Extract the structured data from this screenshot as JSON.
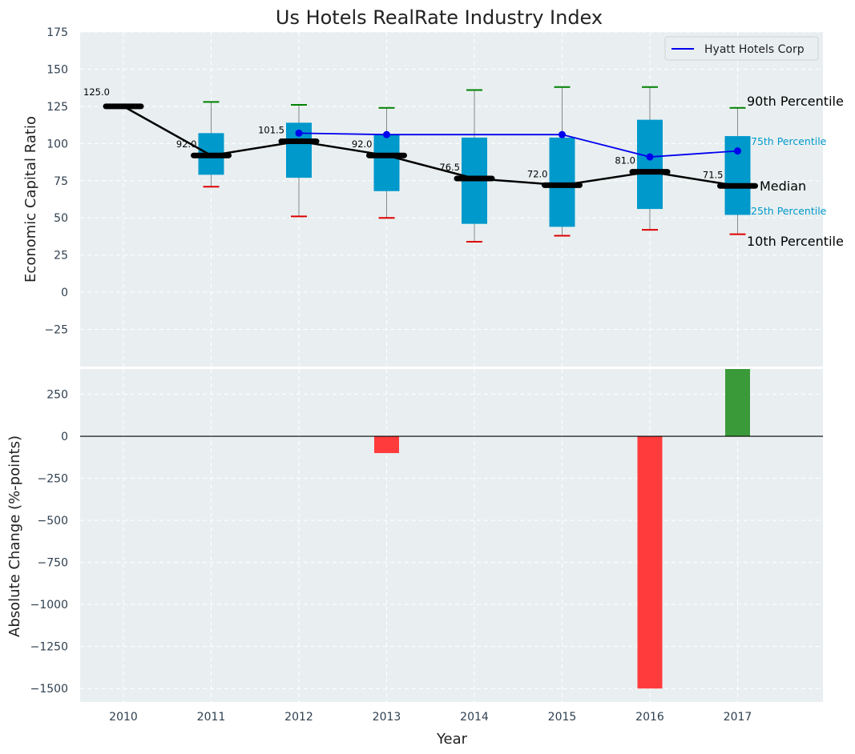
{
  "chart_data": [
    {
      "type": "box",
      "title": "Us Hotels RealRate Industry Index",
      "ylabel": "Economic Capital Ratio",
      "xlabel": "",
      "ylim": [
        -50,
        175
      ],
      "yticks": [
        -25,
        0,
        25,
        50,
        75,
        100,
        125,
        150,
        175
      ],
      "ytick_labels": [
        "−25",
        "0",
        "25",
        "50",
        "75",
        "100",
        "125",
        "150",
        "175"
      ],
      "categories": [
        "2010",
        "2011",
        "2012",
        "2013",
        "2014",
        "2015",
        "2016",
        "2017"
      ],
      "boxes": [
        {
          "year": "2010",
          "p10": 125,
          "p25": 125,
          "median": 125,
          "p75": 125,
          "p90": 125
        },
        {
          "year": "2011",
          "p10": 71,
          "p25": 79,
          "median": 92,
          "p75": 107,
          "p90": 128
        },
        {
          "year": "2012",
          "p10": 51,
          "p25": 77,
          "median": 101.5,
          "p75": 114,
          "p90": 126
        },
        {
          "year": "2013",
          "p10": 50,
          "p25": 68,
          "median": 92,
          "p75": 106,
          "p90": 124
        },
        {
          "year": "2014",
          "p10": 34,
          "p25": 46,
          "median": 76.5,
          "p75": 104,
          "p90": 136
        },
        {
          "year": "2015",
          "p10": 38,
          "p25": 44,
          "median": 72,
          "p75": 104,
          "p90": 138
        },
        {
          "year": "2016",
          "p10": 42,
          "p25": 56,
          "median": 81,
          "p75": 116,
          "p90": 138
        },
        {
          "year": "2017",
          "p10": 39,
          "p25": 52,
          "median": 71.5,
          "p75": 105,
          "p90": 124
        }
      ],
      "median_labels": [
        "125.0",
        "92.0",
        "101.5",
        "92.0",
        "76.5",
        "72.0",
        "81.0",
        "71.5"
      ],
      "series": [
        {
          "name": "Hyatt Hotels Corp",
          "color": "#0000ee",
          "points": [
            {
              "year": "2012",
              "value": 107
            },
            {
              "year": "2013",
              "value": 106
            },
            {
              "year": "2015",
              "value": 106
            },
            {
              "year": "2016",
              "value": 91
            },
            {
              "year": "2017",
              "value": 95
            }
          ]
        }
      ],
      "annotations": {
        "p90": "90th Percentile",
        "p75": "75th Percentile",
        "median": "Median",
        "p25": "25th Percentile",
        "p10": "10th Percentile"
      },
      "legend": {
        "position": "top-right",
        "entries": [
          "Hyatt Hotels Corp"
        ]
      },
      "colors": {
        "box": "#0099cc",
        "median": "#000000",
        "p90_cap": "#008000",
        "p10_cap": "#dd0000",
        "whisker": "#888888"
      }
    },
    {
      "type": "bar",
      "ylabel": "Absolute Change (%-points)",
      "xlabel": "Year",
      "ylim": [
        -1580,
        400
      ],
      "yticks": [
        -1500,
        -1250,
        -1000,
        -750,
        -500,
        -250,
        0,
        250
      ],
      "ytick_labels": [
        "−1500",
        "−1250",
        "−1000",
        "−750",
        "−500",
        "−250",
        "0",
        "250"
      ],
      "categories": [
        "2010",
        "2011",
        "2012",
        "2013",
        "2014",
        "2015",
        "2016",
        "2017"
      ],
      "values": [
        null,
        null,
        null,
        -100,
        null,
        null,
        -1500,
        400
      ],
      "colors": {
        "positive": "#3a9a3a",
        "negative": "#ff3b3b"
      }
    }
  ]
}
